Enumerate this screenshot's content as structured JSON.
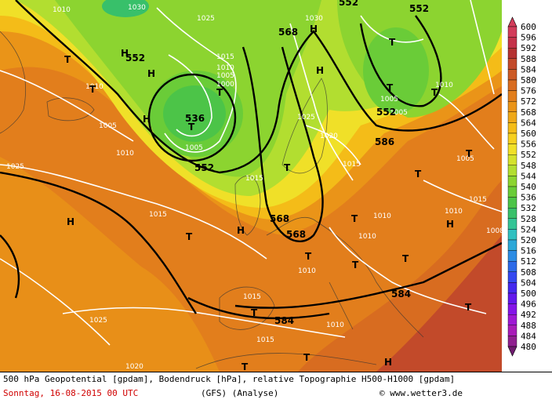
{
  "colorbar": {
    "levels": [
      "600",
      "596",
      "592",
      "588",
      "584",
      "580",
      "576",
      "572",
      "568",
      "564",
      "560",
      "556",
      "552",
      "548",
      "544",
      "540",
      "536",
      "532",
      "528",
      "524",
      "520",
      "516",
      "512",
      "508",
      "504",
      "500",
      "496",
      "492",
      "488",
      "484",
      "480"
    ],
    "colors": [
      "#d23c5a",
      "#c4324a",
      "#b43232",
      "#c24a2a",
      "#cc5a26",
      "#d86c20",
      "#e27e1c",
      "#ea9418",
      "#efa818",
      "#f4bc18",
      "#f6d020",
      "#f0e028",
      "#d4e22c",
      "#b2de30",
      "#8cd430",
      "#6acc38",
      "#4cc448",
      "#38c06a",
      "#34c496",
      "#30c0c0",
      "#2ca8d8",
      "#2c8ce4",
      "#2c6ae8",
      "#3448f0",
      "#4428ee",
      "#6218ec",
      "#8414e8",
      "#9e18d4",
      "#a81cb8",
      "#902090",
      "#701c70"
    ]
  },
  "map": {
    "pressure_labels": [
      "1010",
      "1030",
      "1025",
      "1030",
      "1015",
      "1010",
      "1005",
      "1000",
      "1010",
      "1005",
      "1005",
      "1025",
      "1020",
      "1015",
      "1010",
      "1025",
      "1015",
      "1005",
      "1015",
      "1010",
      "1010",
      "1010",
      "1010",
      "1015",
      "1015",
      "1010",
      "1025",
      "1020",
      "1015",
      "1010",
      "1005",
      "1005",
      "1008"
    ],
    "geopotential_labels": [
      "552",
      "552",
      "552",
      "536",
      "552",
      "568",
      "568",
      "568",
      "584",
      "584",
      "586",
      "552"
    ],
    "high_marker": "H",
    "low_marker": "T"
  },
  "footer": {
    "line1": "500 hPa Geopotential [gpdam], Bodendruck [hPa], relative Topographie H500-H1000 [gpdam]",
    "date": "Sonntag, 16-08-2015  00 UTC",
    "model": "(GFS)  (Analyse)",
    "copyright": "© www.wetter3.de"
  }
}
